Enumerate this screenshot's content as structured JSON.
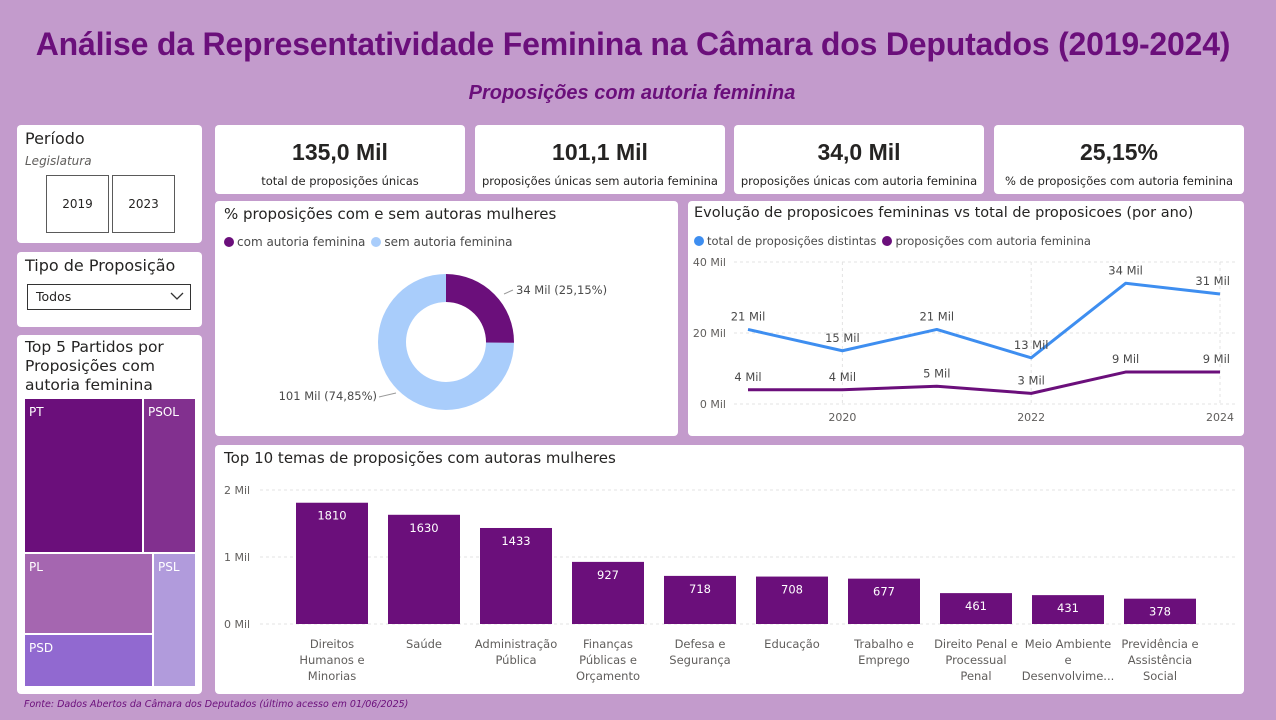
{
  "header": {
    "title": "Análise da Representatividade Feminina na Câmara dos Deputados (2019-2024)",
    "subtitle": "Proposições com autoria feminina"
  },
  "filters": {
    "periodo": {
      "title": "Período",
      "subtitle": "Legislatura",
      "options": [
        "2019",
        "2023"
      ]
    },
    "tipo": {
      "title": "Tipo de Proposição",
      "selected": "Todos"
    }
  },
  "kpis": [
    {
      "value": "135,0 Mil",
      "label": "total de proposições únicas"
    },
    {
      "value": "101,1 Mil",
      "label": "proposições únicas sem autoria feminina"
    },
    {
      "value": "34,0 Mil",
      "label": "proposições únicas com autoria feminina"
    },
    {
      "value": "25,15%",
      "label": "% de proposições com autoria feminina"
    }
  ],
  "treemap": {
    "title": "Top 5 Partidos por Proposições com autoria feminina",
    "items": [
      {
        "label": "PT",
        "color": "#6b0f7b"
      },
      {
        "label": "PSOL",
        "color": "#82308f"
      },
      {
        "label": "PL",
        "color": "#a566b0"
      },
      {
        "label": "PSL",
        "color": "#b19bdc"
      },
      {
        "label": "PSD",
        "color": "#9169d0"
      }
    ]
  },
  "chart_data": [
    {
      "type": "pie",
      "title": "% proposições com e sem autoras mulheres",
      "legend_position": "top-left",
      "series": [
        {
          "name": "com autoria feminina",
          "value": 34,
          "label": "34 Mil (25,15%)",
          "color": "#6b0f7b"
        },
        {
          "name": "sem autoria feminina",
          "value": 101,
          "label": "101 Mil (74,85%)",
          "color": "#a9cdfb"
        }
      ]
    },
    {
      "type": "line",
      "title": "Evolução de proposicoes femininas vs total de proposicoes (por ano)",
      "x": [
        2019,
        2020,
        2021,
        2022,
        2023,
        2024
      ],
      "xticks": [
        "2020",
        "2022",
        "2024"
      ],
      "yticks": [
        "40 Mil",
        "20 Mil",
        "0 Mil"
      ],
      "ylim": [
        0,
        40
      ],
      "grid": true,
      "legend_position": "top-left",
      "series": [
        {
          "name": "total de proposições distintas",
          "color": "#3e8ef0",
          "values": [
            21,
            15,
            21,
            13,
            34,
            31
          ],
          "labels": [
            "21 Mil",
            "15 Mil",
            "21 Mil",
            "13 Mil",
            "34 Mil",
            "31 Mil"
          ]
        },
        {
          "name": "proposições com autoria feminina",
          "color": "#6b0f7b",
          "values": [
            4,
            4,
            5,
            3,
            9,
            9
          ],
          "labels": [
            "4 Mil",
            "4 Mil",
            "5 Mil",
            "3 Mil",
            "9 Mil",
            "9 Mil"
          ]
        }
      ]
    },
    {
      "type": "bar",
      "title": "Top 10 temas de proposições com autoras mulheres",
      "categories": [
        [
          "Direitos",
          "Humanos e",
          "Minorias"
        ],
        [
          "Saúde"
        ],
        [
          "Administração",
          "Pública"
        ],
        [
          "Finanças",
          "Públicas e",
          "Orçamento"
        ],
        [
          "Defesa e",
          "Segurança"
        ],
        [
          "Educação"
        ],
        [
          "Trabalho e",
          "Emprego"
        ],
        [
          "Direito Penal e",
          "Processual",
          "Penal"
        ],
        [
          "Meio Ambiente",
          "e",
          "Desenvolvime..."
        ],
        [
          "Previdência e",
          "Assistência",
          "Social"
        ]
      ],
      "values": [
        1810,
        1630,
        1433,
        927,
        718,
        708,
        677,
        461,
        431,
        378
      ],
      "ylim": [
        0,
        2000
      ],
      "yticks": [
        "2 Mil",
        "1 Mil",
        "0 Mil"
      ],
      "grid": true,
      "color": "#6b0f7b"
    }
  ],
  "footer": {
    "source": "Fonte: Dados Abertos da Câmara dos Deputados (último acesso em 01/06/2025)"
  }
}
